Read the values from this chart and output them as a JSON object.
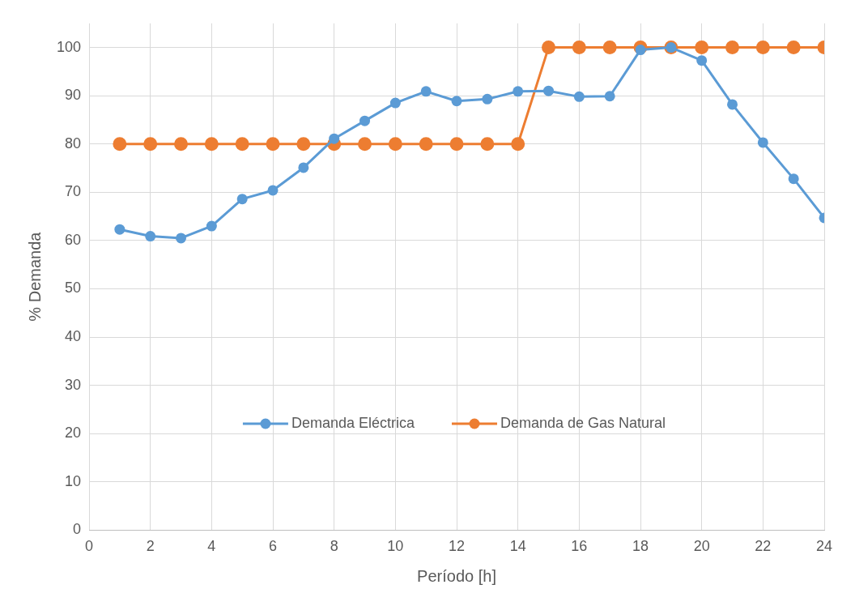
{
  "chart_data": {
    "type": "line",
    "xlabel": "Período [h]",
    "ylabel": "% Demanda",
    "x": [
      1,
      2,
      3,
      4,
      5,
      6,
      7,
      8,
      9,
      10,
      11,
      12,
      13,
      14,
      15,
      16,
      17,
      18,
      19,
      20,
      21,
      22,
      23,
      24
    ],
    "series": [
      {
        "name": "Demanda Eléctrica",
        "color": "#5b9bd5",
        "values": [
          62.3,
          60.9,
          60.5,
          63,
          68.6,
          70.4,
          75.1,
          81.1,
          84.8,
          88.5,
          90.9,
          88.9,
          89.3,
          90.9,
          91,
          89.8,
          89.9,
          99.5,
          100,
          97.3,
          88.2,
          80.3,
          72.8,
          64.7
        ]
      },
      {
        "name": "Demanda de Gas Natural",
        "color": "#ed7d31",
        "values": [
          80,
          80,
          80,
          80,
          80,
          80,
          80,
          80,
          80,
          80,
          80,
          80,
          80,
          80,
          100,
          100,
          100,
          100,
          100,
          100,
          100,
          100,
          100,
          100
        ]
      }
    ],
    "xlim": [
      0,
      24
    ],
    "xticks": [
      0,
      2,
      4,
      6,
      8,
      10,
      12,
      14,
      16,
      18,
      20,
      22,
      24
    ],
    "ylim": [
      0,
      105
    ],
    "yticks": [
      0,
      10,
      20,
      30,
      40,
      50,
      60,
      70,
      80,
      90,
      100
    ],
    "grid": true,
    "legend": "center",
    "marker": "circle",
    "line_style": "solid"
  }
}
